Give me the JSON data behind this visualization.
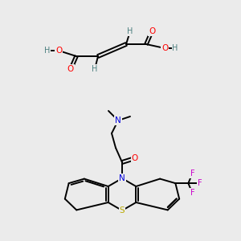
{
  "bg_color": "#ebebeb",
  "atom_colors": {
    "C": "#000000",
    "H": "#4d8080",
    "O": "#ff0000",
    "N": "#0000dd",
    "S": "#bbaa00",
    "F": "#cc00cc"
  },
  "figsize": [
    3.0,
    3.0
  ],
  "dpi": 100
}
